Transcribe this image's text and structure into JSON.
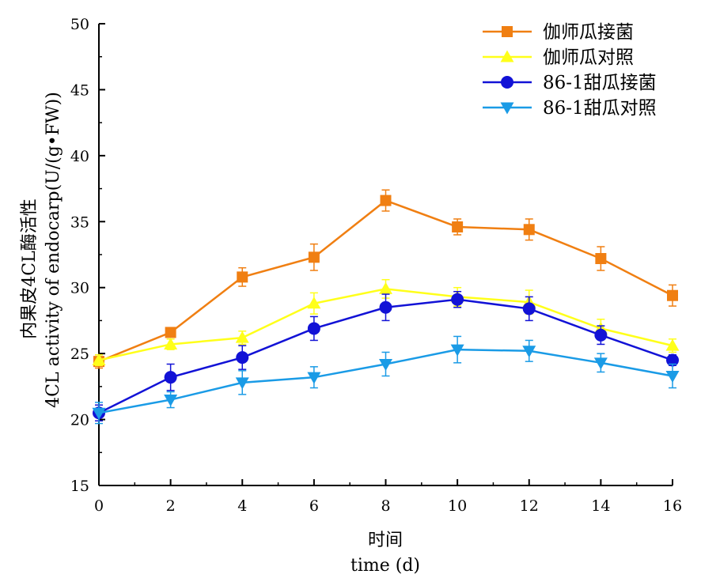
{
  "chart_data": {
    "type": "line",
    "xlabel": [
      "时间",
      "time (d)"
    ],
    "ylabel": [
      "内果皮4CL酶活性",
      "4CL activity of endocarp(U/(g•FW))"
    ],
    "x": [
      0,
      2,
      4,
      6,
      8,
      10,
      12,
      14,
      16
    ],
    "xlim": [
      0,
      16
    ],
    "ylim": [
      15,
      50
    ],
    "x_ticks": [
      "0",
      "2",
      "4",
      "6",
      "8",
      "10",
      "12",
      "14",
      "16"
    ],
    "y_ticks": [
      "15",
      "20",
      "25",
      "30",
      "35",
      "40",
      "45",
      "50"
    ],
    "grid": false,
    "legend_position": "top-right",
    "series": [
      {
        "name": "伽师瓜接菌",
        "color": "#f07f12",
        "marker": "square",
        "values": [
          24.4,
          26.6,
          30.8,
          32.3,
          36.6,
          34.6,
          34.4,
          32.2,
          29.4
        ],
        "errors": [
          0.5,
          0.3,
          0.7,
          1.0,
          0.8,
          0.6,
          0.8,
          0.9,
          0.8
        ]
      },
      {
        "name": "伽师瓜对照",
        "color": "#ffff1a",
        "marker": "triangle-up",
        "values": [
          24.5,
          25.7,
          26.2,
          28.8,
          29.9,
          29.3,
          28.9,
          26.9,
          25.6
        ],
        "errors": [
          0.4,
          0.4,
          0.5,
          0.8,
          0.7,
          0.7,
          0.9,
          0.7,
          0.5
        ]
      },
      {
        "name": "86-1甜瓜接菌",
        "color": "#1212d6",
        "marker": "circle",
        "values": [
          20.5,
          23.2,
          24.7,
          26.9,
          28.5,
          29.1,
          28.4,
          26.4,
          24.5
        ],
        "errors": [
          0.6,
          1.0,
          0.9,
          0.9,
          1.0,
          0.6,
          0.9,
          0.7,
          0.4
        ]
      },
      {
        "name": "86-1甜瓜对照",
        "color": "#1a9be6",
        "marker": "triangle-down",
        "values": [
          20.5,
          21.5,
          22.8,
          23.2,
          24.2,
          25.3,
          25.2,
          24.3,
          23.3
        ],
        "errors": [
          0.8,
          0.6,
          0.9,
          0.8,
          0.9,
          1.0,
          0.8,
          0.7,
          0.9
        ]
      }
    ]
  }
}
